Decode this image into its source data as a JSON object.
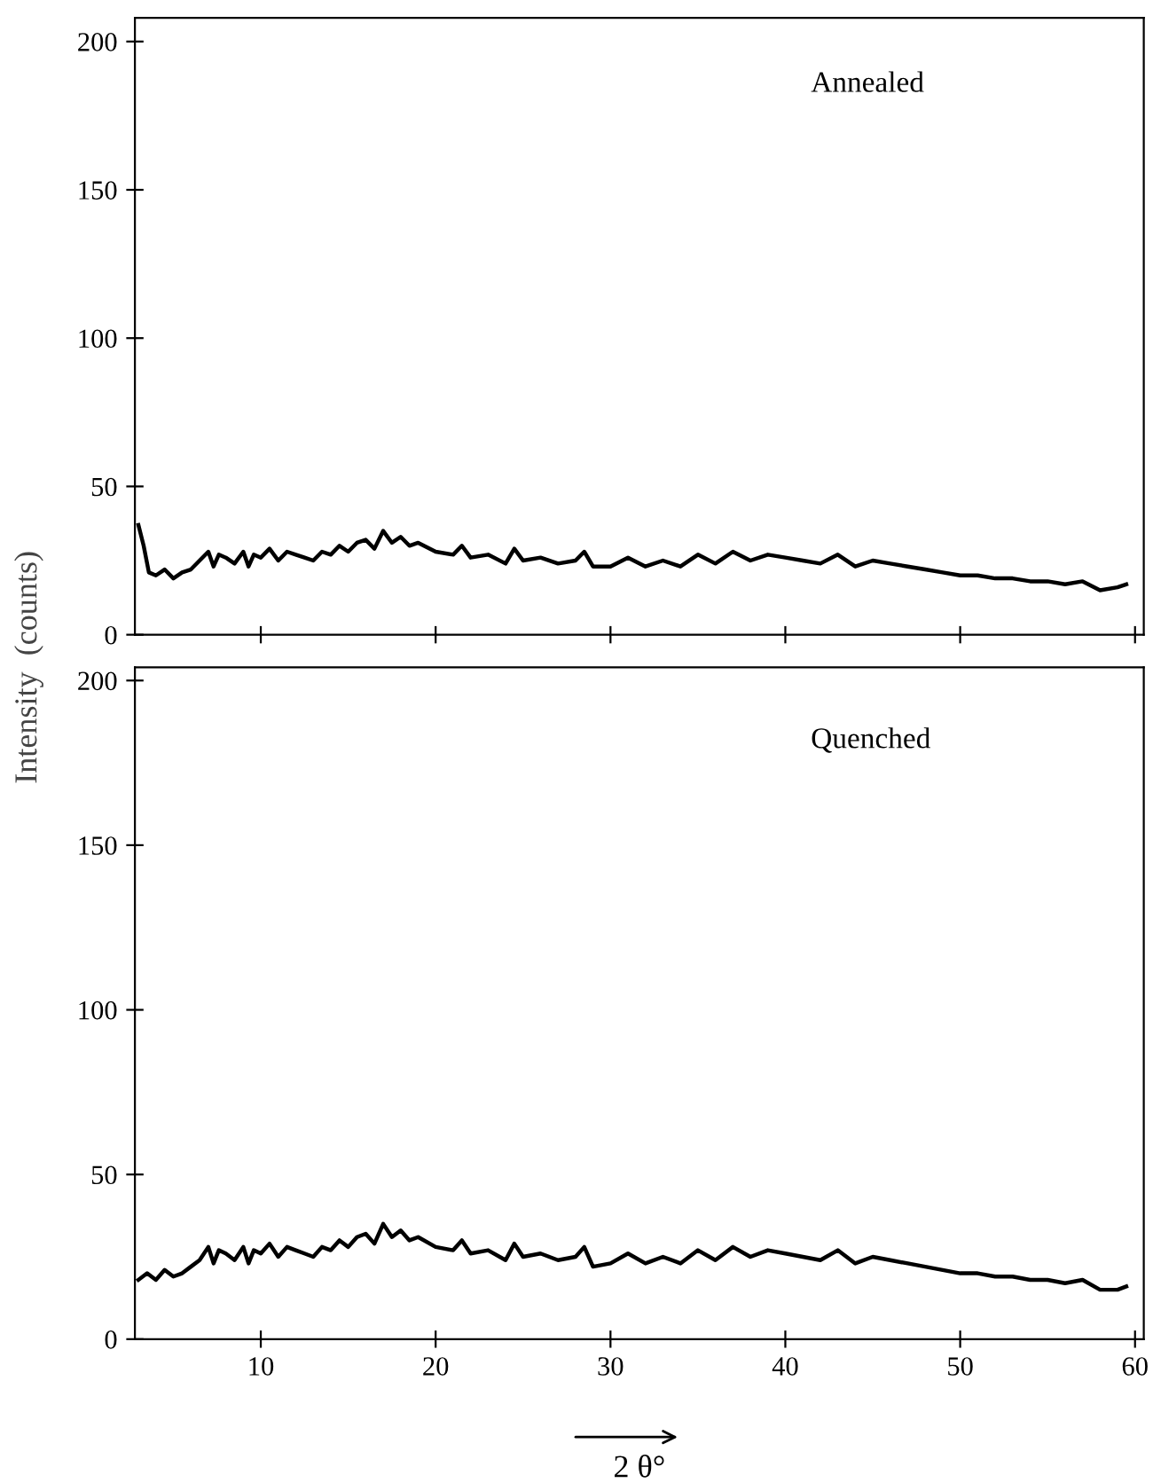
{
  "chart_data": [
    {
      "type": "line",
      "ylabel": "Intensity  (counts)",
      "annotations": [
        "Annealed"
      ],
      "xlim": [
        2.8,
        60.5
      ],
      "ylim": [
        0,
        208
      ],
      "xticks": [
        10,
        20,
        30,
        40,
        50,
        60
      ],
      "yticks": [
        0,
        50,
        100,
        150,
        200
      ],
      "tick_labels": "y",
      "marker": "none",
      "line_style": "solid",
      "series": [
        {
          "color": "#000000",
          "x": [
            3.0,
            3.3,
            3.6,
            4.0,
            4.5,
            5.0,
            5.5,
            6.0,
            6.5,
            7.0,
            7.3,
            7.6,
            8.0,
            8.5,
            9.0,
            9.3,
            9.6,
            10.0,
            10.5,
            11.0,
            11.5,
            12.0,
            12.5,
            13.0,
            13.5,
            14.0,
            14.5,
            15.0,
            15.5,
            16.0,
            16.5,
            17.0,
            17.5,
            18.0,
            18.5,
            19.0,
            20.0,
            21.0,
            21.5,
            22.0,
            23.0,
            24.0,
            24.5,
            25.0,
            26.0,
            27.0,
            28.0,
            28.5,
            29.0,
            30.0,
            31.0,
            32.0,
            33.0,
            34.0,
            35.0,
            36.0,
            37.0,
            38.0,
            39.0,
            40.0,
            41.0,
            42.0,
            43.0,
            44.0,
            45.0,
            46.0,
            47.0,
            48.0,
            49.0,
            50.0,
            51.0,
            52.0,
            53.0,
            54.0,
            55.0,
            56.0,
            57.0,
            58.0,
            59.0,
            59.5
          ],
          "values": [
            37,
            30,
            21,
            20,
            22,
            19,
            21,
            22,
            25,
            28,
            23,
            27,
            26,
            24,
            28,
            23,
            27,
            26,
            29,
            25,
            28,
            27,
            26,
            25,
            28,
            27,
            30,
            28,
            31,
            32,
            29,
            35,
            31,
            33,
            30,
            31,
            28,
            27,
            30,
            26,
            27,
            24,
            29,
            25,
            26,
            24,
            25,
            28,
            23,
            23,
            26,
            23,
            25,
            23,
            27,
            24,
            28,
            25,
            27,
            26,
            25,
            24,
            27,
            23,
            25,
            24,
            23,
            22,
            21,
            20,
            20,
            19,
            19,
            18,
            18,
            17,
            18,
            15,
            16,
            17
          ]
        }
      ]
    },
    {
      "type": "line",
      "xlabel": "2 θ°",
      "annotations": [
        "Quenched"
      ],
      "xlim": [
        2.8,
        60.5
      ],
      "ylim": [
        0,
        204
      ],
      "xticks": [
        10,
        20,
        30,
        40,
        50,
        60
      ],
      "yticks": [
        0,
        50,
        100,
        150,
        200
      ],
      "marker": "none",
      "line_style": "solid",
      "series": [
        {
          "color": "#000000",
          "x": [
            3.0,
            3.5,
            4.0,
            4.5,
            5.0,
            5.5,
            6.0,
            6.5,
            7.0,
            7.3,
            7.6,
            8.0,
            8.5,
            9.0,
            9.3,
            9.6,
            10.0,
            10.5,
            11.0,
            11.5,
            12.0,
            12.5,
            13.0,
            13.5,
            14.0,
            14.5,
            15.0,
            15.5,
            16.0,
            16.5,
            17.0,
            17.5,
            18.0,
            18.5,
            19.0,
            20.0,
            21.0,
            21.5,
            22.0,
            23.0,
            24.0,
            24.5,
            25.0,
            26.0,
            27.0,
            28.0,
            28.5,
            29.0,
            30.0,
            31.0,
            32.0,
            33.0,
            34.0,
            35.0,
            36.0,
            37.0,
            38.0,
            39.0,
            40.0,
            41.0,
            42.0,
            43.0,
            44.0,
            45.0,
            46.0,
            47.0,
            48.0,
            49.0,
            50.0,
            51.0,
            52.0,
            53.0,
            54.0,
            55.0,
            56.0,
            57.0,
            58.0,
            59.0,
            59.5
          ],
          "values": [
            18,
            20,
            18,
            21,
            19,
            20,
            22,
            24,
            28,
            23,
            27,
            26,
            24,
            28,
            23,
            27,
            26,
            29,
            25,
            28,
            27,
            26,
            25,
            28,
            27,
            30,
            28,
            31,
            32,
            29,
            35,
            31,
            33,
            30,
            31,
            28,
            27,
            30,
            26,
            27,
            24,
            29,
            25,
            26,
            24,
            25,
            28,
            22,
            23,
            26,
            23,
            25,
            23,
            27,
            24,
            28,
            25,
            27,
            26,
            25,
            24,
            27,
            23,
            25,
            24,
            23,
            22,
            21,
            20,
            20,
            19,
            19,
            18,
            18,
            17,
            18,
            15,
            15,
            16
          ]
        }
      ]
    }
  ]
}
